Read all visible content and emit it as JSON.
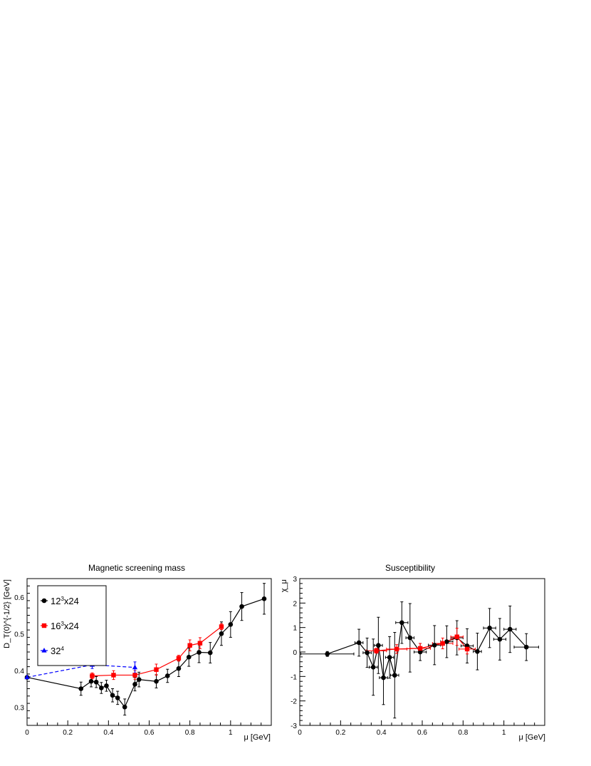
{
  "chart_data": [
    {
      "type": "scatter",
      "title": "Magnetic screening mass",
      "xlabel": "μ [GeV]",
      "ylabel": "D_T(0)^{-1/2} [GeV]",
      "xlim": [
        0,
        1.2
      ],
      "ylim": [
        0.25,
        0.65
      ],
      "x_ticks": [
        0,
        0.2,
        0.4,
        0.6,
        0.8,
        1
      ],
      "y_ticks": [
        0.3,
        0.4,
        0.5,
        0.6
      ],
      "legend_position": "top-left",
      "series": [
        {
          "name": "12³x24",
          "name_base": "12",
          "name_sup": "3",
          "name_tail": "x24",
          "color": "#000000",
          "marker": "circle",
          "line": "solid",
          "x": [
            0.0,
            0.265,
            0.315,
            0.34,
            0.365,
            0.39,
            0.42,
            0.445,
            0.48,
            0.53,
            0.55,
            0.635,
            0.69,
            0.745,
            0.795,
            0.845,
            0.9,
            0.955,
            1.0,
            1.055,
            1.165
          ],
          "y": [
            0.381,
            0.35,
            0.37,
            0.368,
            0.352,
            0.358,
            0.332,
            0.325,
            0.3,
            0.362,
            0.375,
            0.37,
            0.385,
            0.405,
            0.436,
            0.449,
            0.448,
            0.5,
            0.525,
            0.574,
            0.595
          ],
          "yerr": [
            0.0,
            0.018,
            0.015,
            0.015,
            0.015,
            0.015,
            0.018,
            0.018,
            0.022,
            0.018,
            0.02,
            0.018,
            0.018,
            0.022,
            0.025,
            0.028,
            0.028,
            0.032,
            0.035,
            0.038,
            0.042
          ]
        },
        {
          "name": "16³x24",
          "name_base": "16",
          "name_sup": "3",
          "name_tail": "x24",
          "color": "#ff0000",
          "marker": "square",
          "line": "solid",
          "x": [
            0.32,
            0.425,
            0.53,
            0.635,
            0.745,
            0.8,
            0.85,
            0.955
          ],
          "y": [
            0.385,
            0.387,
            0.387,
            0.402,
            0.433,
            0.468,
            0.474,
            0.519
          ],
          "yerr": [
            0.008,
            0.012,
            0.012,
            0.015,
            0.008,
            0.015,
            0.015,
            0.008
          ]
        },
        {
          "name": "32⁴",
          "name_base": "32",
          "name_sup": "4",
          "name_tail": "",
          "color": "#0000ff",
          "marker": "triangle",
          "line": "dashed",
          "x": [
            0.0,
            0.32,
            0.53
          ],
          "y": [
            0.381,
            0.415,
            0.408
          ],
          "yerr": [
            0.0,
            0.01,
            0.015
          ]
        }
      ]
    },
    {
      "type": "scatter",
      "title": "Susceptibility",
      "xlabel": "μ [GeV]",
      "ylabel": "χ_μ",
      "xlim": [
        0,
        1.2
      ],
      "ylim": [
        -3,
        3
      ],
      "x_ticks": [
        0,
        0.2,
        0.4,
        0.6,
        0.8,
        1
      ],
      "y_ticks": [
        -3,
        -2,
        -1,
        0,
        1,
        2,
        3
      ],
      "series": [
        {
          "color": "#000000",
          "marker": "circle",
          "line": "solid",
          "x": [
            0.135,
            0.29,
            0.33,
            0.36,
            0.385,
            0.41,
            0.44,
            0.465,
            0.5,
            0.54,
            0.59,
            0.66,
            0.72,
            0.77,
            0.82,
            0.87,
            0.93,
            0.98,
            1.03,
            1.11
          ],
          "y": [
            -0.08,
            0.38,
            -0.03,
            -0.62,
            0.27,
            -1.05,
            -0.22,
            -0.95,
            1.2,
            0.58,
            0.0,
            0.28,
            0.42,
            0.58,
            0.25,
            0.02,
            0.98,
            0.52,
            0.93,
            0.2
          ],
          "yerr": [
            0.1,
            0.55,
            0.6,
            1.15,
            1.15,
            1.1,
            0.85,
            1.75,
            0.85,
            1.4,
            0.35,
            0.8,
            0.65,
            0.7,
            0.7,
            0.75,
            0.8,
            0.85,
            0.95,
            0.55
          ],
          "xerr": [
            0.13,
            0.02,
            0.02,
            0.02,
            0.02,
            0.02,
            0.02,
            0.02,
            0.03,
            0.02,
            0.03,
            0.03,
            0.03,
            0.03,
            0.03,
            0.02,
            0.03,
            0.03,
            0.03,
            0.06
          ]
        },
        {
          "color": "#ff0000",
          "marker": "square",
          "line": "solid",
          "x": [
            0.375,
            0.475,
            0.59,
            0.7,
            0.77,
            0.82
          ],
          "y": [
            0.05,
            0.12,
            0.15,
            0.35,
            0.62,
            0.12
          ],
          "yerr": [
            0.1,
            0.18,
            0.2,
            0.22,
            0.35,
            0.2
          ],
          "xerr": [
            0.05,
            0.05,
            0.05,
            0.05,
            0.03,
            0.04
          ]
        }
      ]
    }
  ]
}
